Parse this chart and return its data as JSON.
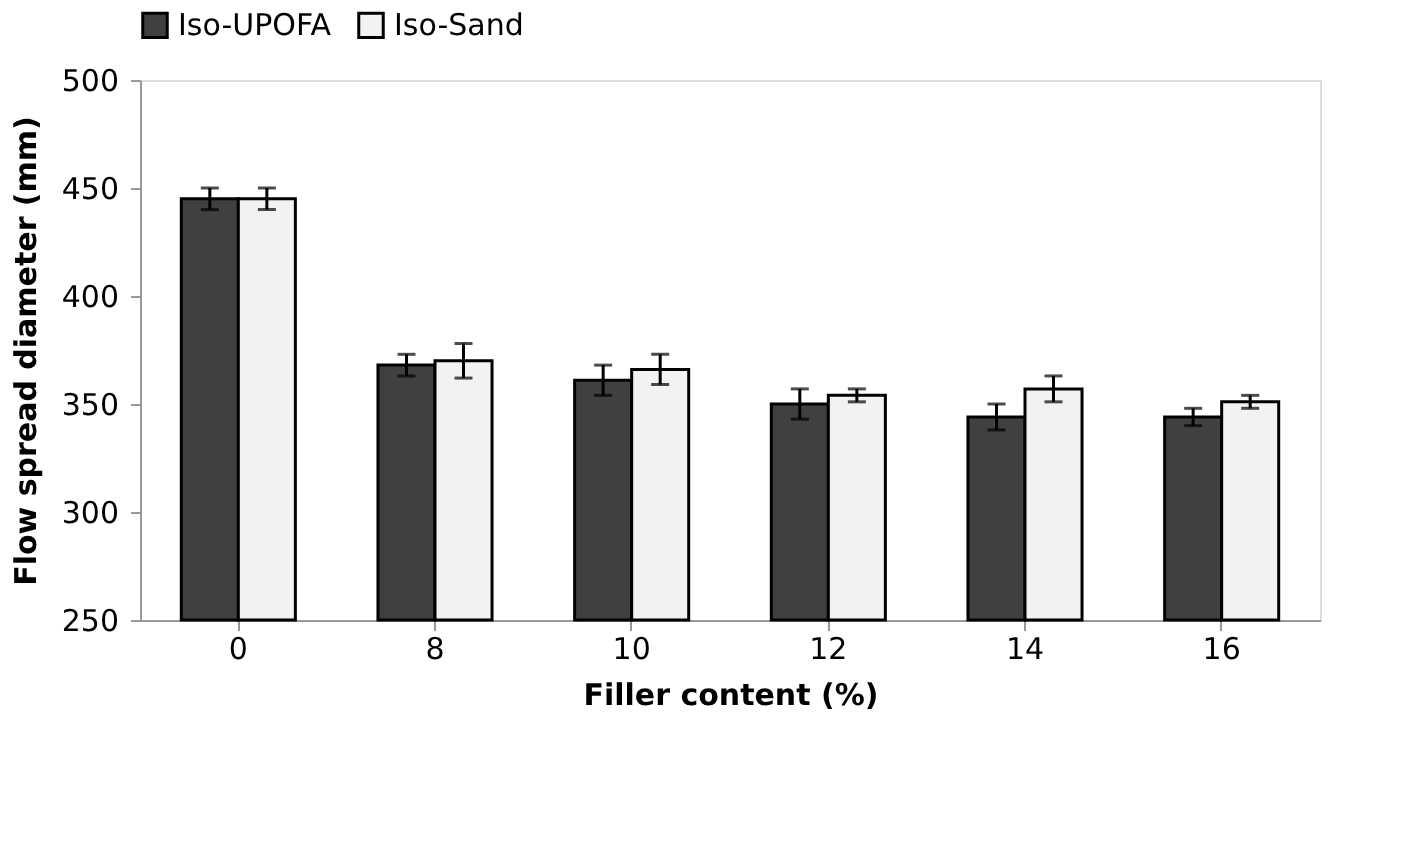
{
  "chart_data": {
    "type": "bar",
    "xlabel": "Filler content (%)",
    "ylabel": "Flow spread diameter (mm)",
    "categories": [
      "0",
      "8",
      "10",
      "12",
      "14",
      "16"
    ],
    "series": [
      {
        "name": "Iso-UPOFA",
        "color": "#404040",
        "values": [
          445,
          368,
          361,
          350,
          344,
          344
        ],
        "errors": [
          5,
          5,
          7,
          7,
          6,
          4
        ]
      },
      {
        "name": "Iso-Sand",
        "color": "#f2f2f2",
        "values": [
          445,
          370,
          366,
          354,
          357,
          351
        ],
        "errors": [
          5,
          8,
          7,
          3,
          6,
          3
        ]
      }
    ],
    "ylim": [
      250,
      500
    ],
    "yticks": [
      250,
      300,
      350,
      400,
      450,
      500
    ],
    "grid": false,
    "legend": "top"
  }
}
